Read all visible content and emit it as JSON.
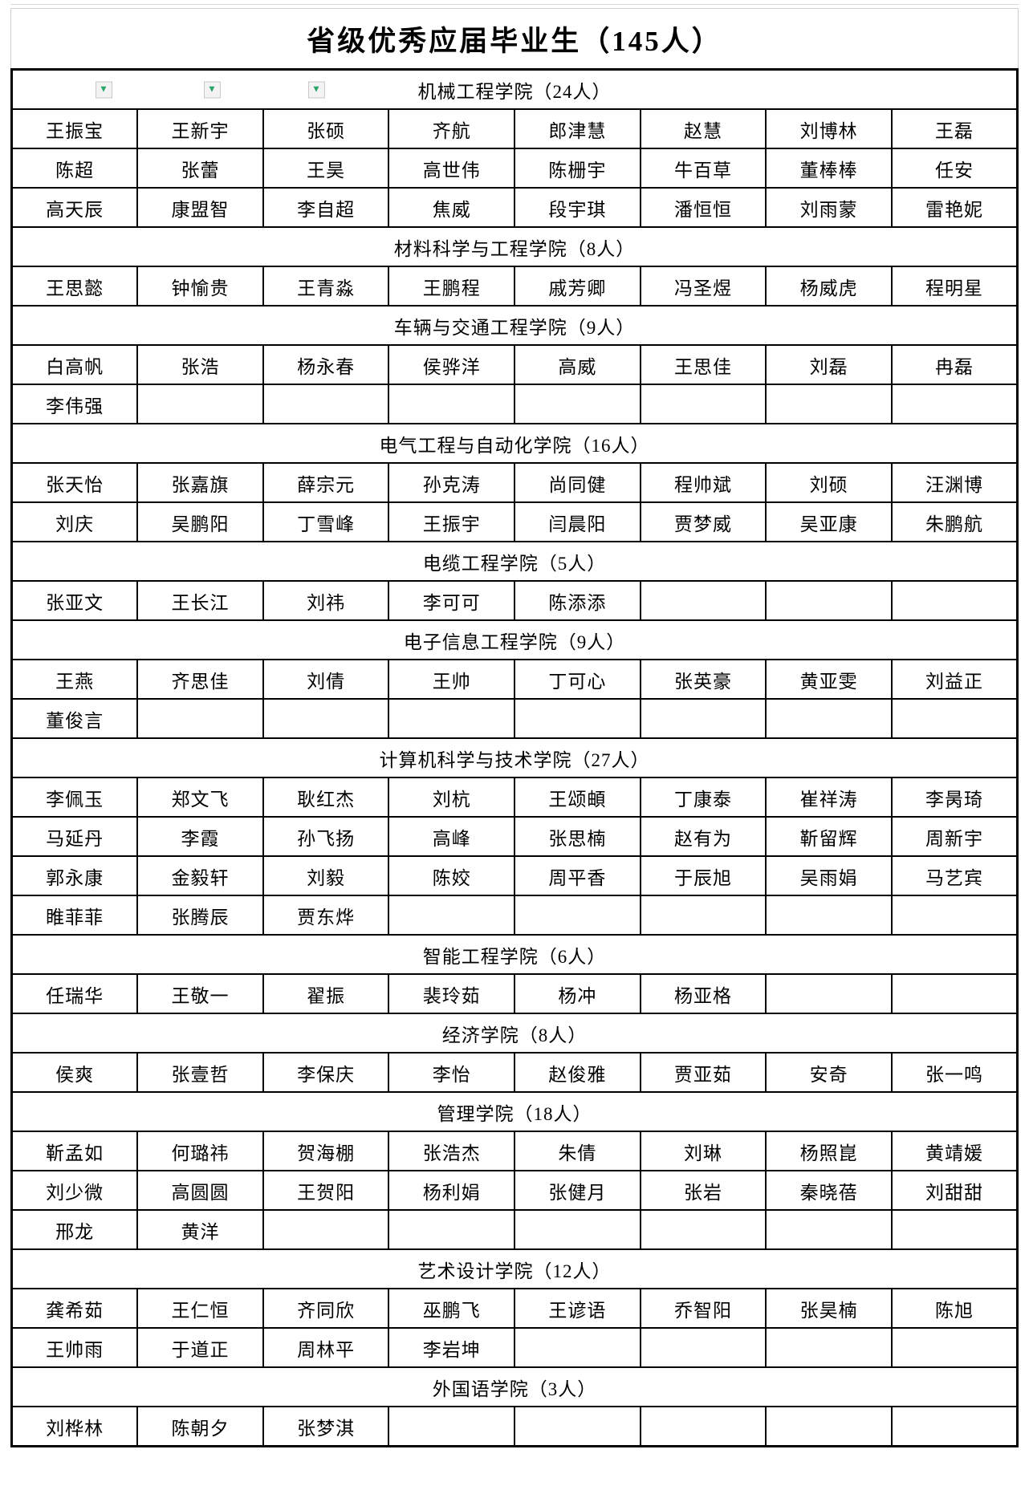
{
  "title": "省级优秀应届毕业生（145人）",
  "filter_icon": "▼",
  "accent_colors": {
    "filter_green": "#2aa566",
    "grid_black": "#000000"
  },
  "sheet": {
    "columns": 8,
    "sections": [
      {
        "name": "机械工程学院（24人）",
        "filters": 3,
        "rows": [
          [
            "王振宝",
            "王新宇",
            "张硕",
            "齐航",
            "郎津慧",
            "赵慧",
            "刘博林",
            "王磊"
          ],
          [
            "陈超",
            "张蕾",
            "王昊",
            "高世伟",
            "陈栅宇",
            "牛百草",
            "董棒棒",
            "任安"
          ],
          [
            "高天辰",
            "康盟智",
            "李自超",
            "焦威",
            "段宇琪",
            "潘恒恒",
            "刘雨蒙",
            "雷艳妮"
          ]
        ]
      },
      {
        "name": "材料科学与工程学院（8人）",
        "filters": 0,
        "rows": [
          [
            "王思懿",
            "钟愉贵",
            "王青淼",
            "王鹏程",
            "戚芳卿",
            "冯圣煜",
            "杨威虎",
            "程明星"
          ]
        ]
      },
      {
        "name": "车辆与交通工程学院（9人）",
        "filters": 0,
        "rows": [
          [
            "白高帆",
            "张浩",
            "杨永春",
            "侯骅洋",
            "高威",
            "王思佳",
            "刘磊",
            "冉磊"
          ],
          [
            "李伟强",
            "",
            "",
            "",
            "",
            "",
            "",
            ""
          ]
        ]
      },
      {
        "name": "电气工程与自动化学院（16人）",
        "filters": 0,
        "rows": [
          [
            "张天怡",
            "张嘉旗",
            "薛宗元",
            "孙克涛",
            "尚同健",
            "程帅斌",
            "刘硕",
            "汪渊博"
          ],
          [
            "刘庆",
            "吴鹏阳",
            "丁雪峰",
            "王振宇",
            "闫晨阳",
            "贾梦威",
            "吴亚康",
            "朱鹏航"
          ]
        ]
      },
      {
        "name": "电缆工程学院（5人）",
        "filters": 0,
        "rows": [
          [
            "张亚文",
            "王长江",
            "刘祎",
            "李可可",
            "陈添添",
            "",
            "",
            ""
          ]
        ]
      },
      {
        "name": "电子信息工程学院（9人）",
        "filters": 0,
        "rows": [
          [
            "王燕",
            "齐思佳",
            "刘倩",
            "王帅",
            "丁可心",
            "张英豪",
            "黄亚雯",
            "刘益正"
          ],
          [
            "董俊言",
            "",
            "",
            "",
            "",
            "",
            "",
            ""
          ]
        ]
      },
      {
        "name": "计算机科学与技术学院（27人）",
        "filters": 0,
        "rows": [
          [
            "李佩玉",
            "郑文飞",
            "耿红杰",
            "刘杭",
            "王颂頔",
            "丁康泰",
            "崔祥涛",
            "李昺琦"
          ],
          [
            "马延丹",
            "李霞",
            "孙飞扬",
            "高峰",
            "张思楠",
            "赵有为",
            "靳留辉",
            "周新宇"
          ],
          [
            "郭永康",
            "金毅轩",
            "刘毅",
            "陈姣",
            "周平香",
            "于辰旭",
            "吴雨娟",
            "马艺宾"
          ],
          [
            "睢菲菲",
            "张腾辰",
            "贾东烨",
            "",
            "",
            "",
            "",
            ""
          ]
        ]
      },
      {
        "name": "智能工程学院（6人）",
        "filters": 0,
        "rows": [
          [
            "任瑞华",
            "王敬一",
            "翟振",
            "裴玲茹",
            "杨冲",
            "杨亚格",
            "",
            ""
          ]
        ]
      },
      {
        "name": "经济学院（8人）",
        "filters": 0,
        "rows": [
          [
            "侯爽",
            "张壹哲",
            "李保庆",
            "李怡",
            "赵俊雅",
            "贾亚茹",
            "安奇",
            "张一鸣"
          ]
        ]
      },
      {
        "name": "管理学院（18人）",
        "filters": 0,
        "rows": [
          [
            "靳孟如",
            "何璐祎",
            "贺海棚",
            "张浩杰",
            "朱倩",
            "刘琳",
            "杨照崑",
            "黄靖媛"
          ],
          [
            "刘少微",
            "高圆圆",
            "王贺阳",
            "杨利娟",
            "张健月",
            "张岩",
            "秦晓蓓",
            "刘甜甜"
          ],
          [
            "邢龙",
            "黄洋",
            "",
            "",
            "",
            "",
            "",
            ""
          ]
        ]
      },
      {
        "name": "艺术设计学院（12人）",
        "filters": 0,
        "rows": [
          [
            "龚希茹",
            "王仁恒",
            "齐同欣",
            "巫鹏飞",
            "王谚语",
            "乔智阳",
            "张昊楠",
            "陈旭"
          ],
          [
            "王帅雨",
            "于道正",
            "周林平",
            "李岩坤",
            "",
            "",
            "",
            ""
          ]
        ]
      },
      {
        "name": "外国语学院（3人）",
        "filters": 0,
        "rows": [
          [
            "刘桦林",
            "陈朝夕",
            "张梦淇",
            "",
            "",
            "",
            "",
            ""
          ]
        ]
      }
    ]
  }
}
